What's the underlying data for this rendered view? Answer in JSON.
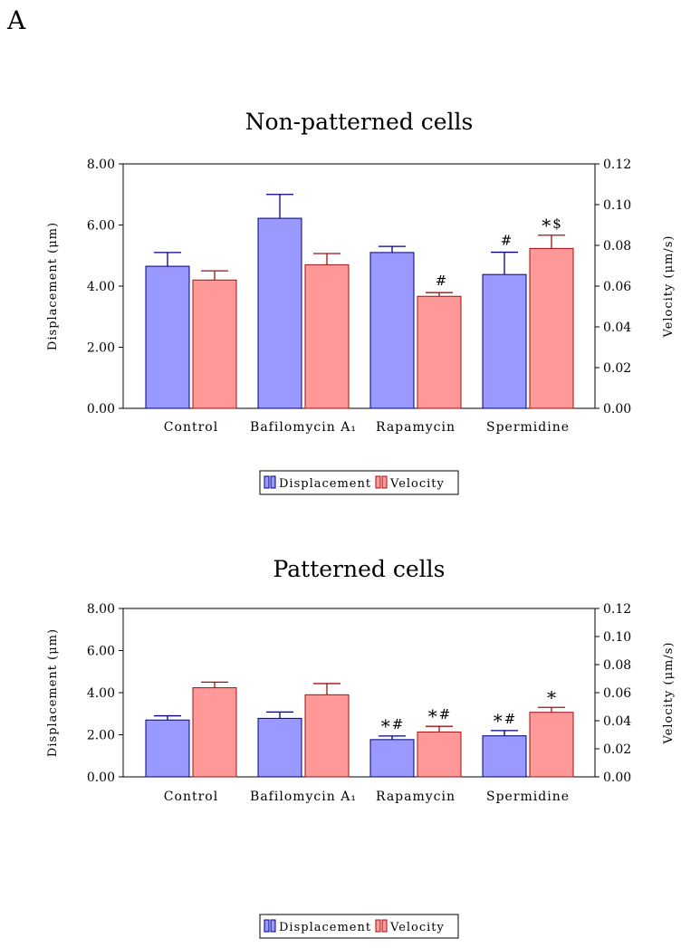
{
  "panel_label": "A",
  "colors": {
    "displacement_fill": "#9999ff",
    "displacement_stroke": "#000080",
    "velocity_fill": "#ff9999",
    "velocity_stroke": "#a01010"
  },
  "chart_data": [
    {
      "type": "bar",
      "title": "Non-patterned cells",
      "categories": [
        "Control",
        "Bafilomycin A₁",
        "Rapamycin",
        "Spermidine"
      ],
      "ylabel": "Displacement (μm)",
      "ylabel_right": "Velocity (μm/s)",
      "ylim": [
        0,
        8
      ],
      "ylim_right": [
        0,
        0.12
      ],
      "yticks": [
        "0.00",
        "2.00",
        "4.00",
        "6.00",
        "8.00"
      ],
      "yticks_right": [
        "0.00",
        "0.02",
        "0.04",
        "0.06",
        "0.08",
        "0.10",
        "0.12"
      ],
      "legend": [
        "Displacement",
        "Velocity"
      ],
      "legend_position": "bottom-center",
      "series": [
        {
          "name": "Displacement",
          "axis": "left",
          "values": [
            4.65,
            6.22,
            5.1,
            4.38
          ],
          "errors": [
            0.45,
            0.78,
            0.2,
            0.73
          ],
          "annotations": [
            "",
            "",
            "",
            "#"
          ]
        },
        {
          "name": "Velocity",
          "axis": "right",
          "values": [
            0.063,
            0.0705,
            0.055,
            0.0785
          ],
          "errors": [
            0.0045,
            0.0055,
            0.0018,
            0.0065
          ],
          "annotations": [
            "",
            "",
            "#",
            "*$"
          ]
        }
      ]
    },
    {
      "type": "bar",
      "title": "Patterned cells",
      "categories": [
        "Control",
        "Bafilomycin A₁",
        "Rapamycin",
        "Spermidine"
      ],
      "ylabel": "Displacement (μm)",
      "ylabel_right": "Velocity (μm/s)",
      "ylim": [
        0,
        8
      ],
      "ylim_right": [
        0,
        0.12
      ],
      "yticks": [
        "0.00",
        "2.00",
        "4.00",
        "6.00",
        "8.00"
      ],
      "yticks_right": [
        "0.00",
        "0.02",
        "0.04",
        "0.06",
        "0.08",
        "0.10",
        "0.12"
      ],
      "legend": [
        "Displacement",
        "Velocity"
      ],
      "legend_position": "bottom-center",
      "series": [
        {
          "name": "Displacement",
          "axis": "left",
          "values": [
            2.7,
            2.78,
            1.77,
            1.95
          ],
          "errors": [
            0.2,
            0.3,
            0.17,
            0.25
          ],
          "annotations": [
            "",
            "",
            "*#",
            "*#"
          ]
        },
        {
          "name": "Velocity",
          "axis": "right",
          "values": [
            0.0635,
            0.0585,
            0.032,
            0.046
          ],
          "errors": [
            0.004,
            0.008,
            0.004,
            0.0035
          ],
          "annotations": [
            "",
            "",
            "*#",
            "*"
          ]
        }
      ]
    }
  ]
}
